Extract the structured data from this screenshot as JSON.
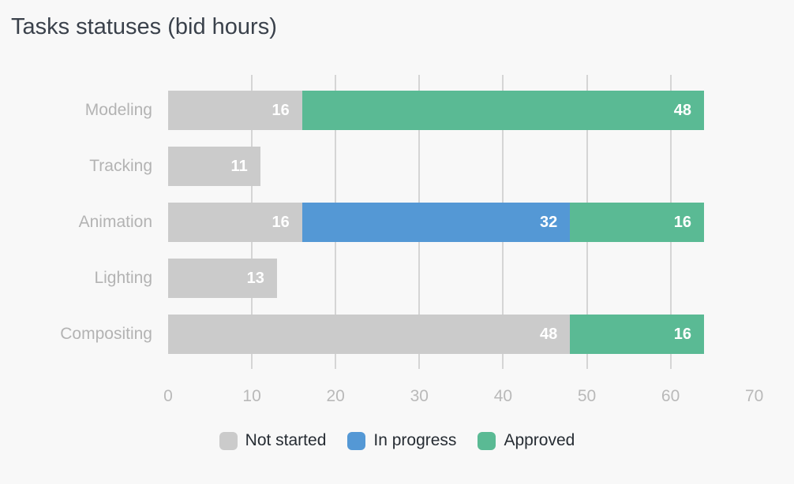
{
  "chart_data": {
    "type": "bar",
    "orientation": "horizontal",
    "stacked": true,
    "title": "Tasks statuses (bid hours)",
    "categories": [
      "Modeling",
      "Tracking",
      "Animation",
      "Lighting",
      "Compositing"
    ],
    "series": [
      {
        "name": "Not started",
        "color": "#cbcbcb",
        "values": [
          16,
          11,
          16,
          13,
          48
        ]
      },
      {
        "name": "In progress",
        "color": "#5498d5",
        "values": [
          0,
          0,
          32,
          0,
          0
        ]
      },
      {
        "name": "Approved",
        "color": "#5aba94",
        "values": [
          48,
          0,
          16,
          0,
          16
        ]
      }
    ],
    "row_totals": [
      64,
      11,
      64,
      13,
      64
    ],
    "xlim": [
      0,
      70
    ],
    "x_ticks": [
      0,
      10,
      20,
      30,
      40,
      50,
      60,
      70
    ],
    "gridline_ticks": [
      10,
      20,
      30,
      40,
      50,
      60
    ],
    "grid": "vertical",
    "legend_position": "bottom-center",
    "value_labels": "inside segment, right-aligned, white",
    "colors": {
      "background": "#f8f8f8",
      "gridline": "#d5d5d5",
      "title_text": "#3a414b",
      "category_label_text": "#b3b3b3",
      "tick_label_text": "#b9b9b9",
      "value_label_text": "#ffffff",
      "legend_text": "#262c33"
    }
  }
}
